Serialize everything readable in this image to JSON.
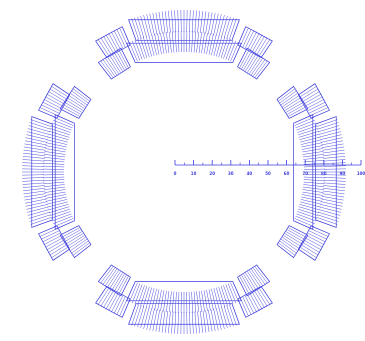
{
  "colors": {
    "line": "#3b3bdc",
    "background": "#ffffff"
  },
  "scale": {
    "labels": [
      "0",
      "10",
      "20",
      "30",
      "40",
      "50",
      "60",
      "70",
      "80",
      "90",
      "100"
    ],
    "minor_per_major": 2
  },
  "sectors": [
    "top",
    "bottom",
    "left",
    "right"
  ]
}
